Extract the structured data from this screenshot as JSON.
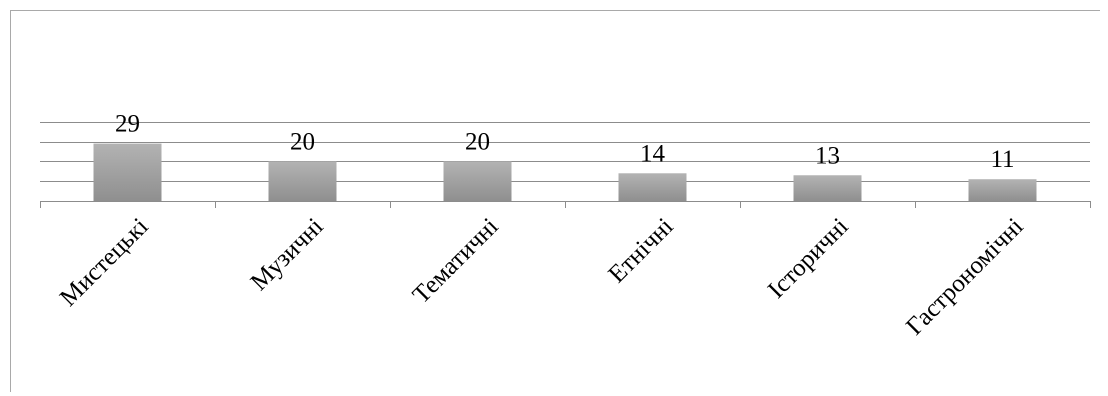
{
  "chart_data": {
    "type": "bar",
    "categories": [
      "Мистецькі",
      "Музичні",
      "Тематичні",
      "Етнічні",
      "Історичні",
      "Гастрономічні"
    ],
    "values": [
      29,
      20,
      20,
      14,
      13,
      11
    ],
    "ylim": [
      0,
      40
    ],
    "grid": true,
    "legend": "none",
    "bar_color": "#a6a6a6"
  }
}
